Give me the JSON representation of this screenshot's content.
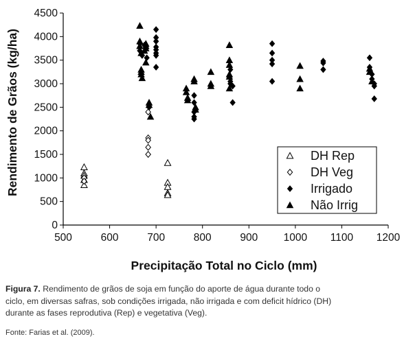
{
  "chart_data": {
    "type": "scatter",
    "title": "",
    "xlabel": "Precipitação Total no Ciclo (mm)",
    "ylabel": "Rendimento de Grãos (kg/ha)",
    "xlim": [
      500,
      1200
    ],
    "ylim": [
      0,
      4500
    ],
    "x_ticks": [
      "500",
      "600",
      "700",
      "800",
      "900",
      "1000",
      "1100",
      "1200"
    ],
    "y_ticks": [
      "0",
      "500",
      "1000",
      "1500",
      "2000",
      "2500",
      "3000",
      "3500",
      "4000",
      "4500"
    ],
    "grid": false,
    "legend_position": "bottom-right",
    "series": [
      {
        "name": "DH Rep",
        "marker": "triangle-open",
        "points": [
          [
            545,
            1230
          ],
          [
            545,
            1100
          ],
          [
            545,
            1050
          ],
          [
            545,
            960
          ],
          [
            545,
            850
          ],
          [
            725,
            1320
          ],
          [
            725,
            900
          ],
          [
            725,
            810
          ],
          [
            725,
            680
          ],
          [
            725,
            640
          ]
        ]
      },
      {
        "name": "DH Veg",
        "marker": "diamond-open",
        "points": [
          [
            545,
            1000
          ],
          [
            545,
            930
          ],
          [
            683,
            2400
          ],
          [
            683,
            1850
          ],
          [
            683,
            1800
          ],
          [
            683,
            1650
          ],
          [
            683,
            1500
          ]
        ]
      },
      {
        "name": "Irrigado",
        "marker": "diamond-filled",
        "points": [
          [
            665,
            3850
          ],
          [
            665,
            3700
          ],
          [
            670,
            3600
          ],
          [
            675,
            3820
          ],
          [
            678,
            3780
          ],
          [
            680,
            3550
          ],
          [
            685,
            2500
          ],
          [
            700,
            4150
          ],
          [
            700,
            3980
          ],
          [
            700,
            3900
          ],
          [
            700,
            3780
          ],
          [
            700,
            3720
          ],
          [
            700,
            3650
          ],
          [
            700,
            3600
          ],
          [
            700,
            3350
          ],
          [
            782,
            2750
          ],
          [
            782,
            2600
          ],
          [
            782,
            2400
          ],
          [
            782,
            2300
          ],
          [
            782,
            2250
          ],
          [
            860,
            3300
          ],
          [
            860,
            3050
          ],
          [
            860,
            3000
          ],
          [
            865,
            2950
          ],
          [
            865,
            2600
          ],
          [
            950,
            3850
          ],
          [
            950,
            3650
          ],
          [
            950,
            3500
          ],
          [
            950,
            3420
          ],
          [
            950,
            3050
          ],
          [
            1060,
            3480
          ],
          [
            1060,
            3440
          ],
          [
            1060,
            3300
          ],
          [
            1160,
            3550
          ],
          [
            1160,
            3350
          ],
          [
            1165,
            3200
          ],
          [
            1165,
            3100
          ],
          [
            1170,
            3000
          ],
          [
            1170,
            2950
          ],
          [
            1170,
            2680
          ]
        ]
      },
      {
        "name": "Não Irrig",
        "marker": "triangle-filled",
        "points": [
          [
            665,
            4230
          ],
          [
            665,
            3900
          ],
          [
            665,
            3800
          ],
          [
            668,
            3650
          ],
          [
            668,
            3300
          ],
          [
            668,
            3250
          ],
          [
            668,
            3200
          ],
          [
            670,
            3120
          ],
          [
            675,
            3700
          ],
          [
            678,
            3850
          ],
          [
            678,
            3800
          ],
          [
            678,
            3750
          ],
          [
            678,
            3450
          ],
          [
            685,
            2600
          ],
          [
            685,
            2550
          ],
          [
            688,
            2300
          ],
          [
            765,
            2900
          ],
          [
            765,
            2820
          ],
          [
            768,
            2700
          ],
          [
            768,
            2650
          ],
          [
            782,
            3100
          ],
          [
            782,
            3050
          ],
          [
            785,
            2500
          ],
          [
            785,
            2450
          ],
          [
            818,
            3250
          ],
          [
            818,
            3000
          ],
          [
            818,
            2950
          ],
          [
            858,
            3820
          ],
          [
            858,
            3500
          ],
          [
            858,
            3400
          ],
          [
            858,
            3200
          ],
          [
            858,
            3150
          ],
          [
            858,
            2900
          ],
          [
            1010,
            3380
          ],
          [
            1010,
            3100
          ],
          [
            1010,
            2900
          ],
          [
            1160,
            3320
          ],
          [
            1160,
            3250
          ],
          [
            1165,
            3050
          ]
        ]
      }
    ]
  },
  "caption": {
    "label": "Figura 7.",
    "line1": "Rendimento de grãos de soja em função do aporte de água durante todo o",
    "line2": "ciclo, em diversas safras, sob condições irrigada, não irrigada e com deficit hídrico (DH)",
    "line3": "durante as fases reprodutiva (Rep) e vegetativa (Veg).",
    "source": "Fonte: Farias et al. (2009)."
  }
}
